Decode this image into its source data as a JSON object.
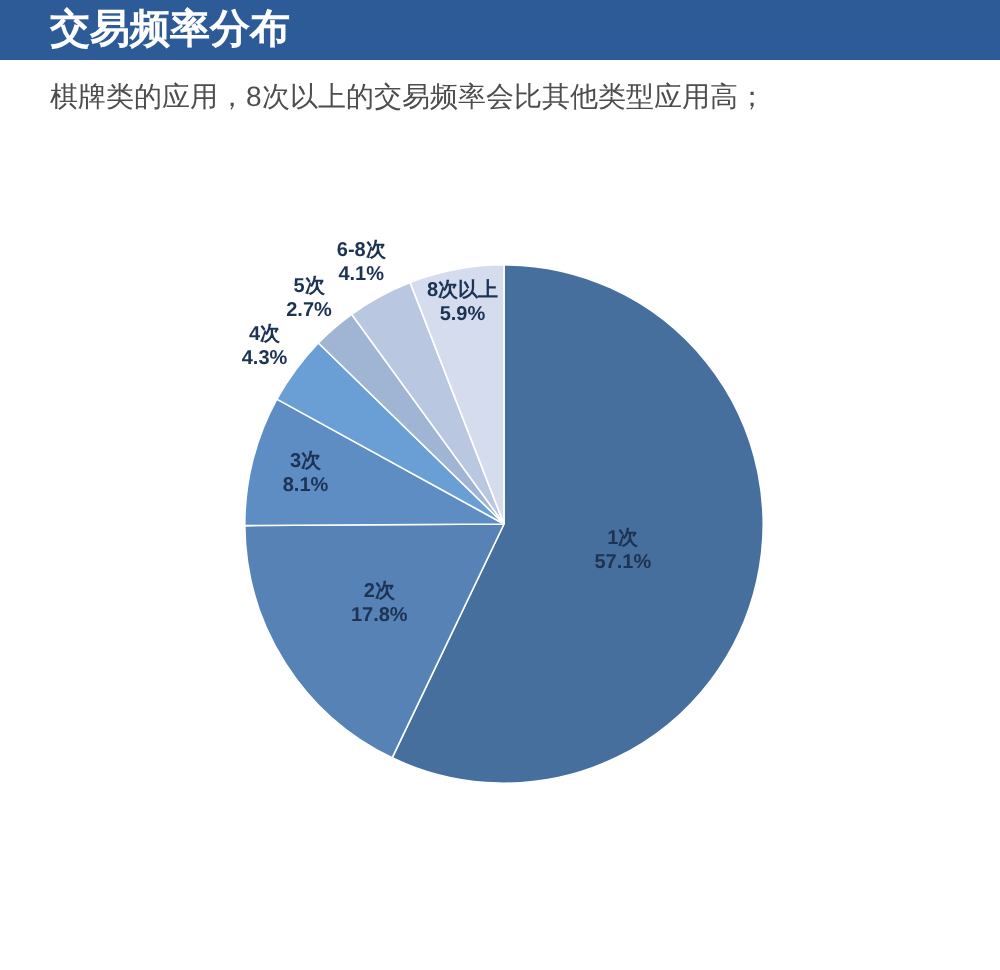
{
  "chart_data": {
    "type": "pie",
    "title": "交易频率分布",
    "subtitle": "棋牌类的应用，8次以上的交易频率会比其他类型应用高；",
    "categories": [
      "1次",
      "2次",
      "3次",
      "4次",
      "5次",
      "6-8次",
      "8次以上"
    ],
    "values": [
      57.1,
      17.8,
      8.1,
      4.3,
      2.7,
      4.1,
      5.9
    ],
    "value_labels": [
      "57.1%",
      "17.8%",
      "8.1%",
      "4.3%",
      "2.7%",
      "4.1%",
      "5.9%"
    ],
    "colors": [
      "#476f9e",
      "#5682b6",
      "#5e8dc3",
      "#6a9fd6",
      "#a0b4d3",
      "#b9c7e1",
      "#d5dcee"
    ]
  }
}
